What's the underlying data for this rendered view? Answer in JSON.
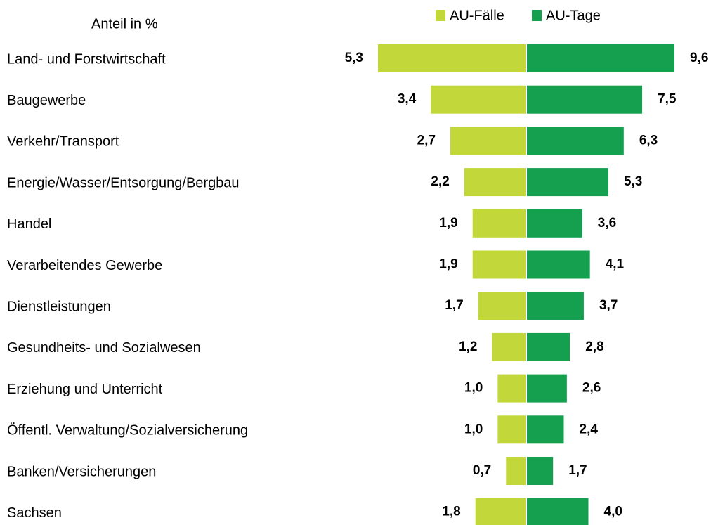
{
  "chart_data": {
    "type": "butterfly-bar",
    "title": "Anteil in %",
    "categories": [
      "Land- und Forstwirtschaft",
      "Baugewerbe",
      "Verkehr/Transport",
      "Energie/Wasser/Entsorgung/Bergbau",
      "Handel",
      "Verarbeitendes Gewerbe",
      "Dienstleistungen",
      "Gesundheits- und Sozialwesen",
      "Erziehung und Unterricht",
      "Öffentl. Verwaltung/Sozialversicherung",
      "Banken/Versicherungen",
      "Sachsen"
    ],
    "series": [
      {
        "name": "AU-Fälle",
        "color": "#c2d83a",
        "values": [
          5.3,
          3.4,
          2.7,
          2.2,
          1.9,
          1.9,
          1.7,
          1.2,
          1.0,
          1.0,
          0.7,
          1.8
        ],
        "value_labels": [
          "5,3",
          "3,4",
          "2,7",
          "2,2",
          "1,9",
          "1,9",
          "1,7",
          "1,2",
          "1,0",
          "1,0",
          "0,7",
          "1,8"
        ]
      },
      {
        "name": "AU-Tage",
        "color": "#14a04f",
        "values": [
          9.6,
          7.5,
          6.3,
          5.3,
          3.6,
          4.1,
          3.7,
          2.8,
          2.6,
          2.4,
          1.7,
          4.0
        ],
        "value_labels": [
          "9,6",
          "7,5",
          "6,3",
          "5,3",
          "3,6",
          "4,1",
          "3,7",
          "2,8",
          "2,6",
          "2,4",
          "1,7",
          "4,0"
        ]
      }
    ]
  }
}
